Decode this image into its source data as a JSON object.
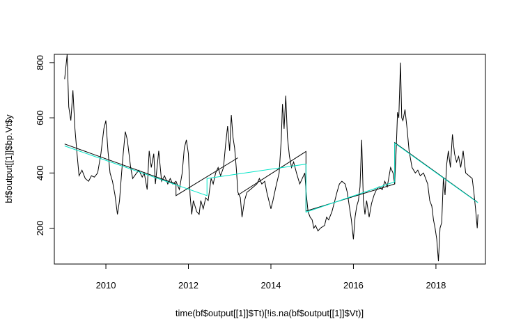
{
  "chart_data": {
    "type": "line",
    "title": "",
    "xlabel": "time(bf$output[[1]]$Tt)[!is.na(bf$output[[1]]$Vt)]",
    "ylabel": "bf$output[[1]]$bp.Vt$y",
    "xlim": [
      2008.75,
      2019.2
    ],
    "ylim": [
      70,
      830
    ],
    "x_ticks": [
      2010,
      2012,
      2014,
      2016,
      2018
    ],
    "x_tick_labels": [
      "2010",
      "2012",
      "2014",
      "2016",
      "2018"
    ],
    "y_ticks": [
      200,
      400,
      600,
      800
    ],
    "y_tick_labels": [
      "200",
      "400",
      "600",
      "800"
    ],
    "grid": false,
    "legend": "none",
    "series": [
      {
        "color": "#000000",
        "values": [
          [
            2009.0,
            740
          ],
          [
            2009.06,
            830
          ],
          [
            2009.1,
            640
          ],
          [
            2009.15,
            590
          ],
          [
            2009.2,
            700
          ],
          [
            2009.25,
            560
          ],
          [
            2009.3,
            470
          ],
          [
            2009.35,
            390
          ],
          [
            2009.42,
            410
          ],
          [
            2009.5,
            380
          ],
          [
            2009.58,
            370
          ],
          [
            2009.65,
            390
          ],
          [
            2009.72,
            385
          ],
          [
            2009.8,
            400
          ],
          [
            2009.88,
            470
          ],
          [
            2009.95,
            560
          ],
          [
            2010.0,
            590
          ],
          [
            2010.05,
            480
          ],
          [
            2010.1,
            400
          ],
          [
            2010.16,
            370
          ],
          [
            2010.22,
            320
          ],
          [
            2010.28,
            250
          ],
          [
            2010.33,
            300
          ],
          [
            2010.38,
            400
          ],
          [
            2010.42,
            470
          ],
          [
            2010.47,
            550
          ],
          [
            2010.52,
            520
          ],
          [
            2010.6,
            420
          ],
          [
            2010.65,
            380
          ],
          [
            2010.72,
            395
          ],
          [
            2010.8,
            410
          ],
          [
            2010.88,
            385
          ],
          [
            2010.93,
            400
          ],
          [
            2011.0,
            340
          ],
          [
            2011.05,
            480
          ],
          [
            2011.1,
            420
          ],
          [
            2011.16,
            470
          ],
          [
            2011.2,
            360
          ],
          [
            2011.28,
            480
          ],
          [
            2011.35,
            370
          ],
          [
            2011.42,
            390
          ],
          [
            2011.5,
            360
          ],
          [
            2011.56,
            380
          ],
          [
            2011.62,
            360
          ],
          [
            2011.7,
            370
          ],
          [
            2011.78,
            340
          ],
          [
            2011.85,
            400
          ],
          [
            2011.9,
            490
          ],
          [
            2011.95,
            520
          ],
          [
            2012.0,
            470
          ],
          [
            2012.04,
            320
          ],
          [
            2012.08,
            250
          ],
          [
            2012.12,
            300
          ],
          [
            2012.2,
            260
          ],
          [
            2012.26,
            250
          ],
          [
            2012.3,
            300
          ],
          [
            2012.36,
            270
          ],
          [
            2012.42,
            310
          ],
          [
            2012.48,
            300
          ],
          [
            2012.55,
            380
          ],
          [
            2012.6,
            360
          ],
          [
            2012.66,
            400
          ],
          [
            2012.72,
            420
          ],
          [
            2012.78,
            390
          ],
          [
            2012.85,
            420
          ],
          [
            2012.9,
            500
          ],
          [
            2012.95,
            570
          ],
          [
            2013.0,
            480
          ],
          [
            2013.04,
            610
          ],
          [
            2013.08,
            530
          ],
          [
            2013.12,
            490
          ],
          [
            2013.16,
            420
          ],
          [
            2013.2,
            330
          ],
          [
            2013.26,
            310
          ],
          [
            2013.3,
            240
          ],
          [
            2013.36,
            300
          ],
          [
            2013.42,
            330
          ],
          [
            2013.5,
            340
          ],
          [
            2013.58,
            350
          ],
          [
            2013.66,
            360
          ],
          [
            2013.72,
            380
          ],
          [
            2013.78,
            360
          ],
          [
            2013.85,
            370
          ],
          [
            2013.9,
            330
          ],
          [
            2013.95,
            300
          ],
          [
            2014.0,
            270
          ],
          [
            2014.05,
            300
          ],
          [
            2014.12,
            350
          ],
          [
            2014.2,
            400
          ],
          [
            2014.25,
            520
          ],
          [
            2014.28,
            650
          ],
          [
            2014.32,
            560
          ],
          [
            2014.36,
            680
          ],
          [
            2014.4,
            530
          ],
          [
            2014.45,
            460
          ],
          [
            2014.5,
            420
          ],
          [
            2014.55,
            440
          ],
          [
            2014.62,
            400
          ],
          [
            2014.7,
            360
          ],
          [
            2014.76,
            380
          ],
          [
            2014.82,
            400
          ],
          [
            2014.86,
            320
          ],
          [
            2014.9,
            260
          ],
          [
            2014.95,
            240
          ],
          [
            2015.0,
            230
          ],
          [
            2015.04,
            200
          ],
          [
            2015.08,
            210
          ],
          [
            2015.14,
            190
          ],
          [
            2015.2,
            200
          ],
          [
            2015.3,
            210
          ],
          [
            2015.35,
            240
          ],
          [
            2015.4,
            230
          ],
          [
            2015.48,
            260
          ],
          [
            2015.55,
            300
          ],
          [
            2015.6,
            330
          ],
          [
            2015.66,
            360
          ],
          [
            2015.72,
            370
          ],
          [
            2015.8,
            360
          ],
          [
            2015.85,
            330
          ],
          [
            2015.9,
            280
          ],
          [
            2015.95,
            230
          ],
          [
            2016.0,
            160
          ],
          [
            2016.04,
            240
          ],
          [
            2016.08,
            280
          ],
          [
            2016.12,
            300
          ],
          [
            2016.16,
            350
          ],
          [
            2016.2,
            520
          ],
          [
            2016.24,
            300
          ],
          [
            2016.28,
            250
          ],
          [
            2016.32,
            300
          ],
          [
            2016.38,
            240
          ],
          [
            2016.44,
            290
          ],
          [
            2016.5,
            320
          ],
          [
            2016.56,
            340
          ],
          [
            2016.62,
            350
          ],
          [
            2016.7,
            340
          ],
          [
            2016.76,
            370
          ],
          [
            2016.82,
            350
          ],
          [
            2016.9,
            420
          ],
          [
            2016.96,
            400
          ],
          [
            2017.0,
            360
          ],
          [
            2017.04,
            500
          ],
          [
            2017.07,
            620
          ],
          [
            2017.1,
            600
          ],
          [
            2017.12,
            700
          ],
          [
            2017.14,
            800
          ],
          [
            2017.17,
            600
          ],
          [
            2017.2,
            590
          ],
          [
            2017.25,
            630
          ],
          [
            2017.3,
            560
          ],
          [
            2017.35,
            480
          ],
          [
            2017.42,
            420
          ],
          [
            2017.5,
            400
          ],
          [
            2017.56,
            410
          ],
          [
            2017.62,
            390
          ],
          [
            2017.7,
            400
          ],
          [
            2017.75,
            380
          ],
          [
            2017.8,
            360
          ],
          [
            2017.85,
            300
          ],
          [
            2017.9,
            280
          ],
          [
            2017.94,
            230
          ],
          [
            2017.98,
            200
          ],
          [
            2018.02,
            160
          ],
          [
            2018.06,
            80
          ],
          [
            2018.1,
            200
          ],
          [
            2018.14,
            220
          ],
          [
            2018.18,
            380
          ],
          [
            2018.22,
            320
          ],
          [
            2018.26,
            430
          ],
          [
            2018.3,
            480
          ],
          [
            2018.35,
            420
          ],
          [
            2018.4,
            540
          ],
          [
            2018.45,
            470
          ],
          [
            2018.5,
            440
          ],
          [
            2018.55,
            460
          ],
          [
            2018.6,
            420
          ],
          [
            2018.66,
            480
          ],
          [
            2018.72,
            400
          ],
          [
            2018.8,
            390
          ],
          [
            2018.88,
            380
          ],
          [
            2018.92,
            330
          ],
          [
            2018.96,
            270
          ],
          [
            2019.0,
            200
          ],
          [
            2019.02,
            250
          ]
        ]
      },
      {
        "color": "#000000",
        "values": [
          [
            2009.0,
            505
          ],
          [
            2011.7,
            360
          ],
          [
            2011.7,
            318
          ],
          [
            2013.2,
            455
          ]
        ]
      },
      {
        "color": "#000000",
        "values": [
          [
            2013.2,
            320
          ],
          [
            2014.85,
            478
          ],
          [
            2014.85,
            262
          ],
          [
            2017.0,
            360
          ],
          [
            2017.0,
            510
          ],
          [
            2019.0,
            295
          ]
        ]
      },
      {
        "color": "#00e5c8",
        "values": [
          [
            2009.0,
            498
          ],
          [
            2012.45,
            318
          ],
          [
            2012.45,
            380
          ],
          [
            2014.85,
            432
          ],
          [
            2014.85,
            258
          ],
          [
            2017.0,
            368
          ],
          [
            2017.0,
            508
          ],
          [
            2019.02,
            292
          ]
        ]
      }
    ]
  }
}
